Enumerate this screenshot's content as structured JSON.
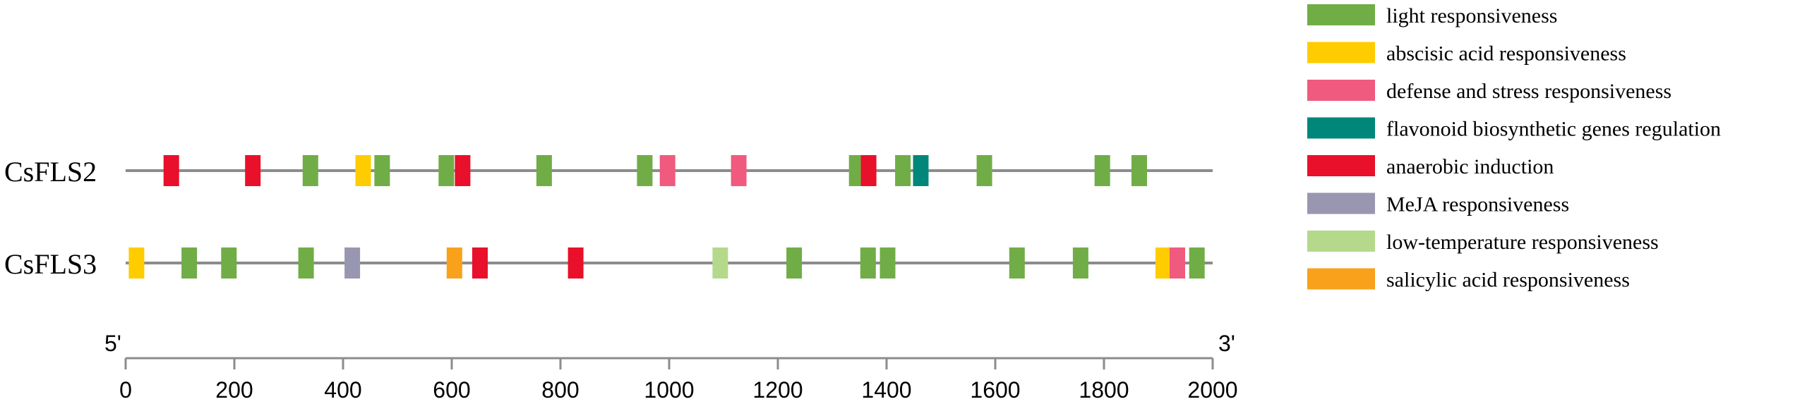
{
  "chart_data": {
    "type": "promoter-element-map",
    "x_axis": {
      "range": [
        0,
        2000
      ],
      "ticks": [
        0,
        200,
        400,
        600,
        800,
        1000,
        1200,
        1400,
        1600,
        1800,
        2000
      ],
      "tick_labels": [
        "0",
        "200",
        "400",
        "600",
        "800",
        "1000",
        "1200",
        "1400",
        "1600",
        "1800",
        "2000"
      ],
      "left_end_label": "5'",
      "right_end_label": "3'"
    },
    "legend": [
      {
        "key": "light",
        "label": "light responsiveness",
        "color": "#70AD47"
      },
      {
        "key": "aba",
        "label": "abscisic acid responsiveness",
        "color": "#FFCC00"
      },
      {
        "key": "defense",
        "label": "defense and stress responsiveness",
        "color": "#F05A7E"
      },
      {
        "key": "flavonoid",
        "label": "flavonoid biosynthetic genes regulation",
        "color": "#00877A"
      },
      {
        "key": "anaerobic",
        "label": "anaerobic induction",
        "color": "#E8102A"
      },
      {
        "key": "meja",
        "label": "MeJA responsiveness",
        "color": "#9896B1"
      },
      {
        "key": "lowtemp",
        "label": "low-temperature responsiveness",
        "color": "#B5D98B"
      },
      {
        "key": "sa",
        "label": "salicylic acid responsiveness",
        "color": "#F9A11B"
      }
    ],
    "genes": [
      {
        "name": "CsFLS2",
        "elements": [
          {
            "pos": 84,
            "type": "anaerobic"
          },
          {
            "pos": 234,
            "type": "anaerobic"
          },
          {
            "pos": 340,
            "type": "light"
          },
          {
            "pos": 437,
            "type": "aba"
          },
          {
            "pos": 472,
            "type": "light"
          },
          {
            "pos": 590,
            "type": "light"
          },
          {
            "pos": 620,
            "type": "anaerobic"
          },
          {
            "pos": 770,
            "type": "light"
          },
          {
            "pos": 955,
            "type": "light"
          },
          {
            "pos": 997,
            "type": "defense"
          },
          {
            "pos": 1128,
            "type": "defense"
          },
          {
            "pos": 1345,
            "type": "light"
          },
          {
            "pos": 1367,
            "type": "anaerobic"
          },
          {
            "pos": 1430,
            "type": "light"
          },
          {
            "pos": 1463,
            "type": "flavonoid"
          },
          {
            "pos": 1580,
            "type": "light"
          },
          {
            "pos": 1797,
            "type": "light"
          },
          {
            "pos": 1865,
            "type": "light"
          }
        ]
      },
      {
        "name": "CsFLS3",
        "elements": [
          {
            "pos": 20,
            "type": "aba"
          },
          {
            "pos": 117,
            "type": "light"
          },
          {
            "pos": 190,
            "type": "light"
          },
          {
            "pos": 332,
            "type": "light"
          },
          {
            "pos": 417,
            "type": "meja"
          },
          {
            "pos": 605,
            "type": "sa"
          },
          {
            "pos": 652,
            "type": "anaerobic"
          },
          {
            "pos": 828,
            "type": "anaerobic"
          },
          {
            "pos": 1094,
            "type": "lowtemp"
          },
          {
            "pos": 1230,
            "type": "light"
          },
          {
            "pos": 1366,
            "type": "light"
          },
          {
            "pos": 1402,
            "type": "light"
          },
          {
            "pos": 1640,
            "type": "light"
          },
          {
            "pos": 1757,
            "type": "light"
          },
          {
            "pos": 1909,
            "type": "aba"
          },
          {
            "pos": 1935,
            "type": "defense"
          },
          {
            "pos": 1971,
            "type": "light"
          }
        ]
      }
    ]
  }
}
